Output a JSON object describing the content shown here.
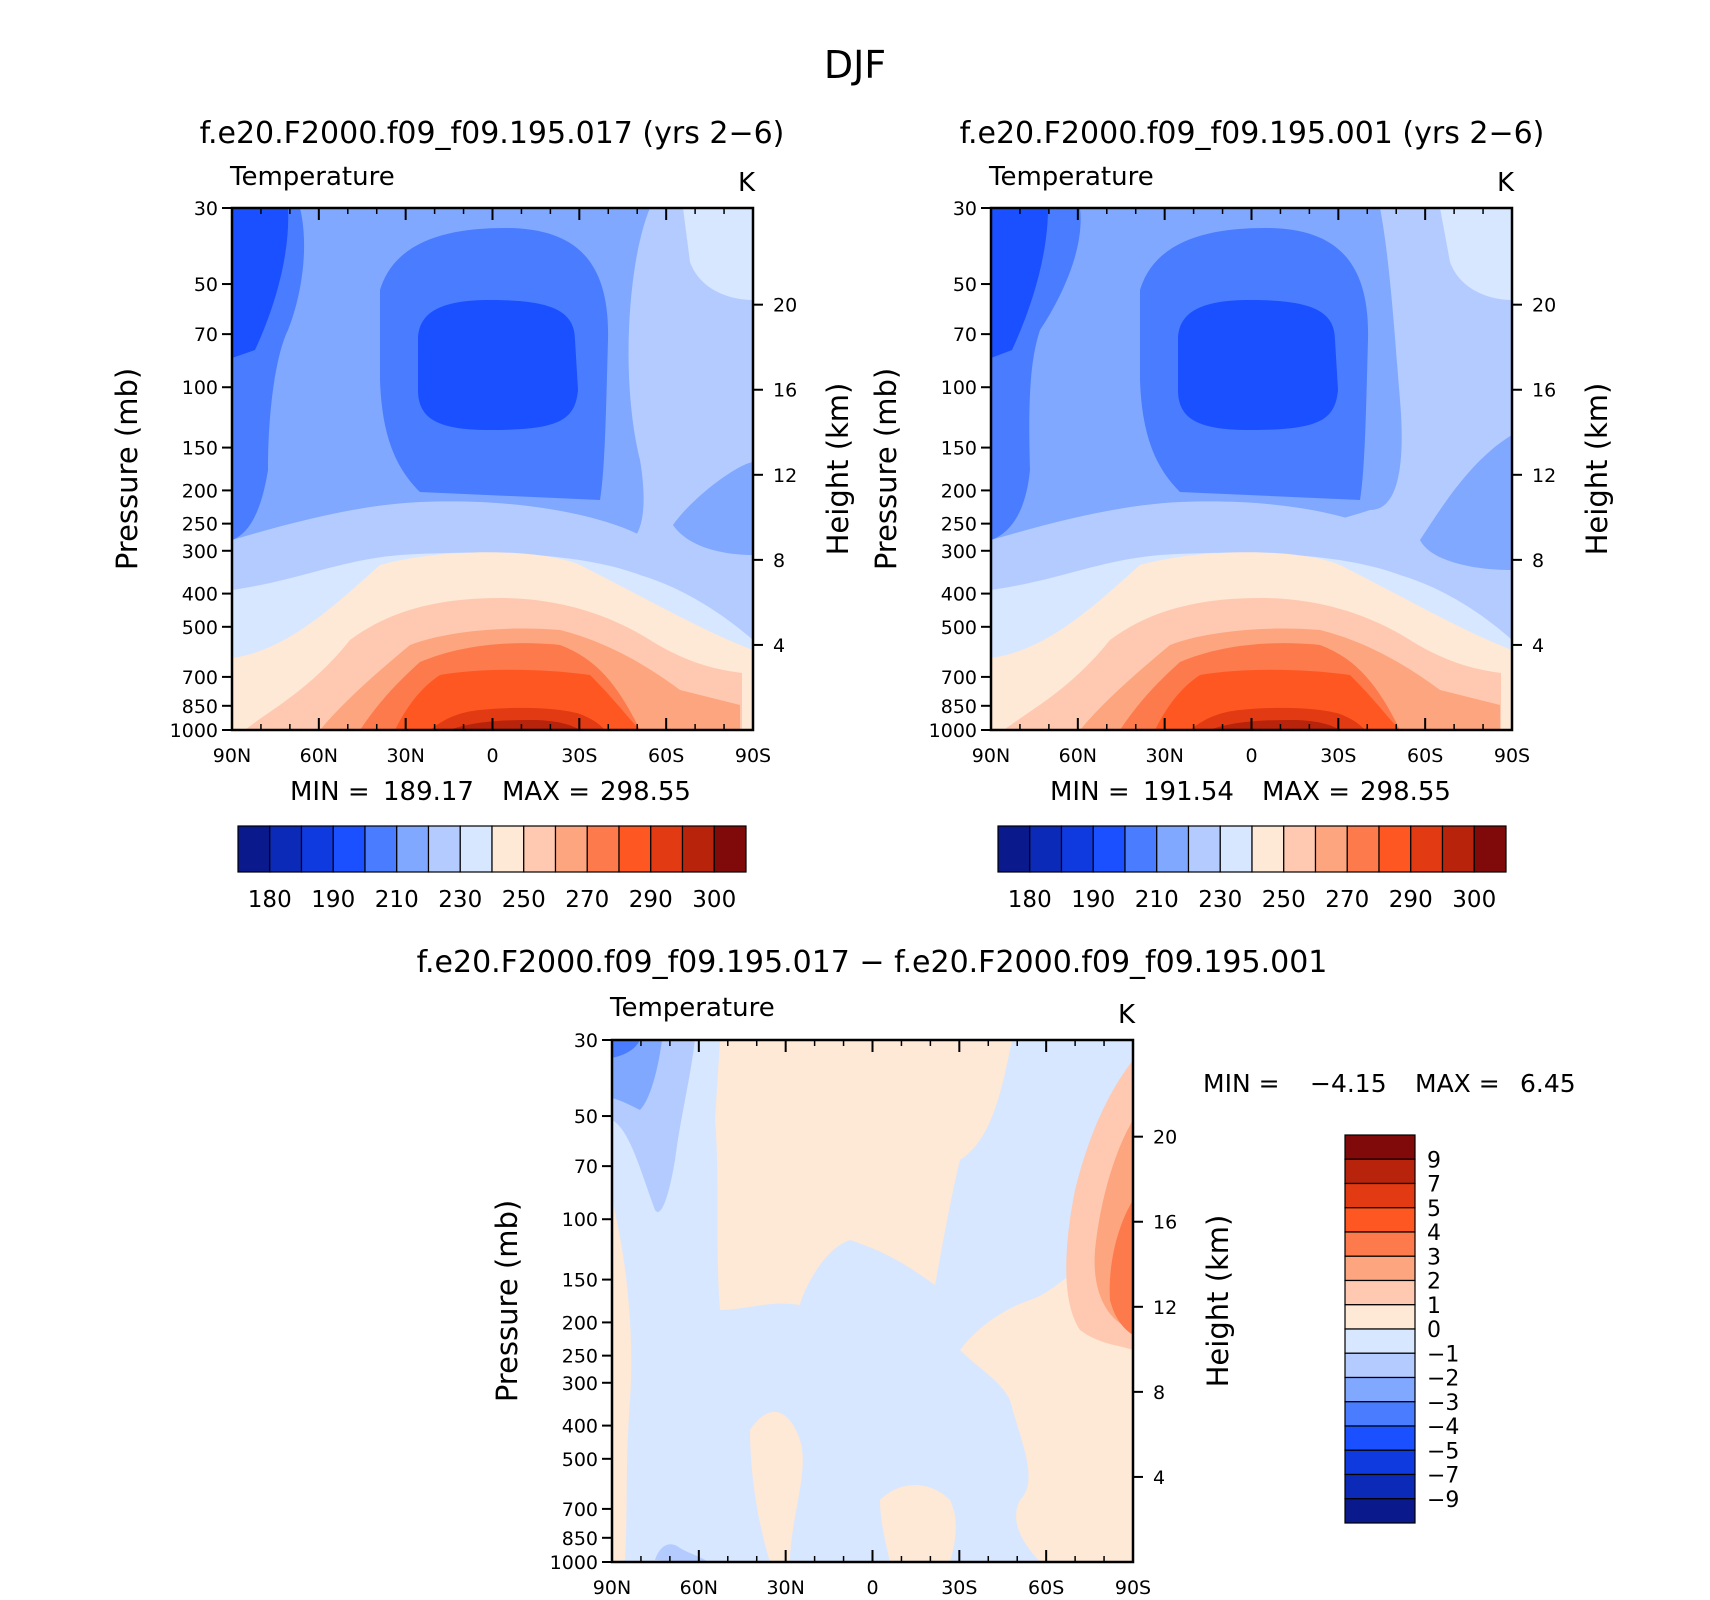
{
  "figure": {
    "title": "DJF"
  },
  "chart_data": [
    {
      "type": "contour",
      "title": "f.e20.F2000.f09_f09.195.017 (yrs 2−6)",
      "left_label": "Temperature",
      "right_label": "K",
      "ylabel": "Pressure (mb)",
      "y2label": "Height (km)",
      "x_ticks": [
        "90N",
        "60N",
        "30N",
        "0",
        "30S",
        "60S",
        "90S"
      ],
      "y_ticks": [
        30,
        50,
        70,
        100,
        150,
        200,
        250,
        300,
        400,
        500,
        700,
        850,
        1000
      ],
      "y2_ticks": [
        20,
        16,
        12,
        8,
        4
      ],
      "ylim": [
        1000,
        30
      ],
      "xlim": [
        90,
        -90
      ],
      "y_scale": "log",
      "stats": {
        "min_label": "MIN =",
        "min": "189.17",
        "max_label": "MAX =",
        "max": "298.55"
      },
      "colorbar": {
        "orientation": "horizontal",
        "tick_labels": [
          "180",
          "190",
          "210",
          "230",
          "250",
          "270",
          "290",
          "300"
        ],
        "colors": [
          "#0a1a8c",
          "#0c2ab8",
          "#0f3ae0",
          "#1a50ff",
          "#4a7cff",
          "#80a8ff",
          "#b4cbff",
          "#d7e7ff",
          "#fee8d6",
          "#fec9b0",
          "#fda57e",
          "#fd7a4c",
          "#ff5722",
          "#e23a12",
          "#b8230c",
          "#800a0a"
        ]
      }
    },
    {
      "type": "contour",
      "title": "f.e20.F2000.f09_f09.195.001 (yrs 2−6)",
      "left_label": "Temperature",
      "right_label": "K",
      "ylabel": "Pressure (mb)",
      "y2label": "Height (km)",
      "x_ticks": [
        "90N",
        "60N",
        "30N",
        "0",
        "30S",
        "60S",
        "90S"
      ],
      "y_ticks": [
        30,
        50,
        70,
        100,
        150,
        200,
        250,
        300,
        400,
        500,
        700,
        850,
        1000
      ],
      "y2_ticks": [
        20,
        16,
        12,
        8,
        4
      ],
      "ylim": [
        1000,
        30
      ],
      "xlim": [
        90,
        -90
      ],
      "y_scale": "log",
      "stats": {
        "min_label": "MIN =",
        "min": "191.54",
        "max_label": "MAX =",
        "max": "298.55"
      },
      "colorbar": {
        "orientation": "horizontal",
        "tick_labels": [
          "180",
          "190",
          "210",
          "230",
          "250",
          "270",
          "290",
          "300"
        ],
        "colors": [
          "#0a1a8c",
          "#0c2ab8",
          "#0f3ae0",
          "#1a50ff",
          "#4a7cff",
          "#80a8ff",
          "#b4cbff",
          "#d7e7ff",
          "#fee8d6",
          "#fec9b0",
          "#fda57e",
          "#fd7a4c",
          "#ff5722",
          "#e23a12",
          "#b8230c",
          "#800a0a"
        ]
      }
    },
    {
      "type": "contour",
      "title": "f.e20.F2000.f09_f09.195.017 − f.e20.F2000.f09_f09.195.001",
      "left_label": "Temperature",
      "right_label": "K",
      "ylabel": "Pressure (mb)",
      "y2label": "Height (km)",
      "x_ticks": [
        "90N",
        "60N",
        "30N",
        "0",
        "30S",
        "60S",
        "90S"
      ],
      "y_ticks": [
        30,
        50,
        70,
        100,
        150,
        200,
        250,
        300,
        400,
        500,
        700,
        850,
        1000
      ],
      "y2_ticks": [
        20,
        16,
        12,
        8,
        4
      ],
      "ylim": [
        1000,
        30
      ],
      "xlim": [
        90,
        -90
      ],
      "y_scale": "log",
      "stats": {
        "min_label": "MIN =",
        "min": "−4.15",
        "max_label": "MAX =",
        "max": "6.45"
      },
      "colorbar": {
        "orientation": "vertical",
        "tick_labels": [
          "9",
          "7",
          "5",
          "4",
          "3",
          "2",
          "1",
          "0",
          "−1",
          "−2",
          "−3",
          "−4",
          "−5",
          "−7",
          "−9"
        ],
        "colors": [
          "#800a0a",
          "#b8230c",
          "#e23a12",
          "#ff5722",
          "#fd7a4c",
          "#fda57e",
          "#fec9b0",
          "#fee8d6",
          "#d7e7ff",
          "#b4cbff",
          "#80a8ff",
          "#4a7cff",
          "#1a50ff",
          "#0f3ae0",
          "#0c2ab8",
          "#0a1a8c"
        ]
      }
    }
  ]
}
